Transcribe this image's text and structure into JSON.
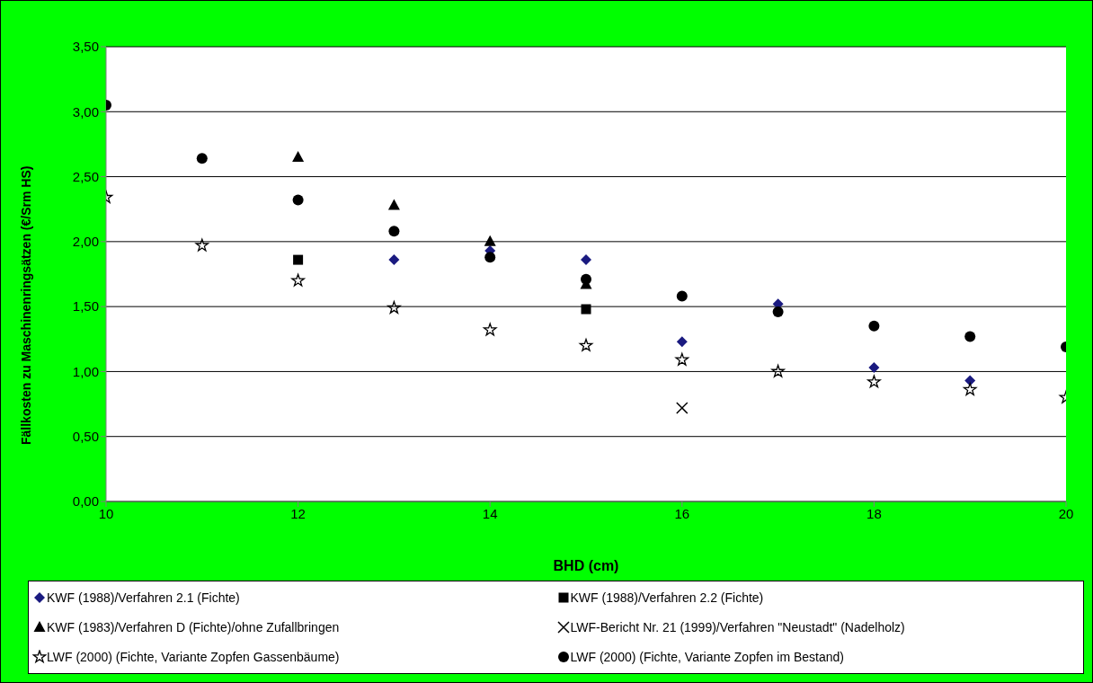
{
  "chart_data": {
    "type": "scatter",
    "xlabel": "BHD (cm)",
    "ylabel": "Fällkosten zu Maschinenringsätzen (€/Srm HS)",
    "xlim": [
      10,
      20
    ],
    "xticks": [
      10,
      12,
      14,
      16,
      18,
      20
    ],
    "ylim": [
      0,
      3.5
    ],
    "yticks": [
      {
        "value": 0,
        "label": "0,00"
      },
      {
        "value": 0.5,
        "label": "0,50"
      },
      {
        "value": 1,
        "label": "1,00"
      },
      {
        "value": 1.5,
        "label": "1,50"
      },
      {
        "value": 2,
        "label": "2,00"
      },
      {
        "value": 2.5,
        "label": "2,50"
      },
      {
        "value": 3,
        "label": "3,00"
      },
      {
        "value": 3.5,
        "label": "3,50"
      }
    ],
    "grid": "y",
    "legend": "bottom",
    "series": [
      {
        "name": "KWF (1988)/Verfahren 2.1 (Fichte)",
        "color": "#1a1a80",
        "marker": "diamond",
        "x": [
          13,
          14,
          15,
          16,
          17,
          18,
          19
        ],
        "values": [
          1.86,
          1.93,
          1.86,
          1.23,
          1.52,
          1.03,
          0.93
        ]
      },
      {
        "name": "KWF (1988)/Verfahren 2.2 (Fichte)",
        "color": "#000000",
        "marker": "square",
        "x": [
          12,
          15
        ],
        "values": [
          1.86,
          1.48
        ]
      },
      {
        "name": "KWF (1983)/Verfahren D (Fichte)/ohne Zufallbringen",
        "color": "#000000",
        "marker": "triangle",
        "x": [
          12,
          13,
          14,
          15
        ],
        "values": [
          2.65,
          2.28,
          2.0,
          1.67
        ]
      },
      {
        "name": "LWF-Bericht Nr. 21 (1999)/Verfahren \"Neustadt\" (Nadelholz)",
        "color": "#000000",
        "marker": "cross",
        "x": [
          16
        ],
        "values": [
          0.72
        ]
      },
      {
        "name": "LWF (2000) (Fichte, Variante Zopfen Gassenbäume)",
        "color": "#000000",
        "marker": "star",
        "x": [
          10,
          11,
          12,
          13,
          14,
          15,
          16,
          17,
          18,
          19,
          20
        ],
        "values": [
          2.34,
          1.97,
          1.7,
          1.49,
          1.32,
          1.2,
          1.09,
          1.0,
          0.92,
          0.86,
          0.8
        ]
      },
      {
        "name": "LWF (2000) (Fichte, Variante Zopfen im Bestand)",
        "color": "#000000",
        "marker": "circle",
        "x": [
          10,
          11,
          12,
          13,
          14,
          15,
          16,
          17,
          18,
          19,
          20
        ],
        "values": [
          3.05,
          2.64,
          2.32,
          2.08,
          1.88,
          1.71,
          1.58,
          1.46,
          1.35,
          1.27,
          1.19
        ]
      }
    ]
  }
}
